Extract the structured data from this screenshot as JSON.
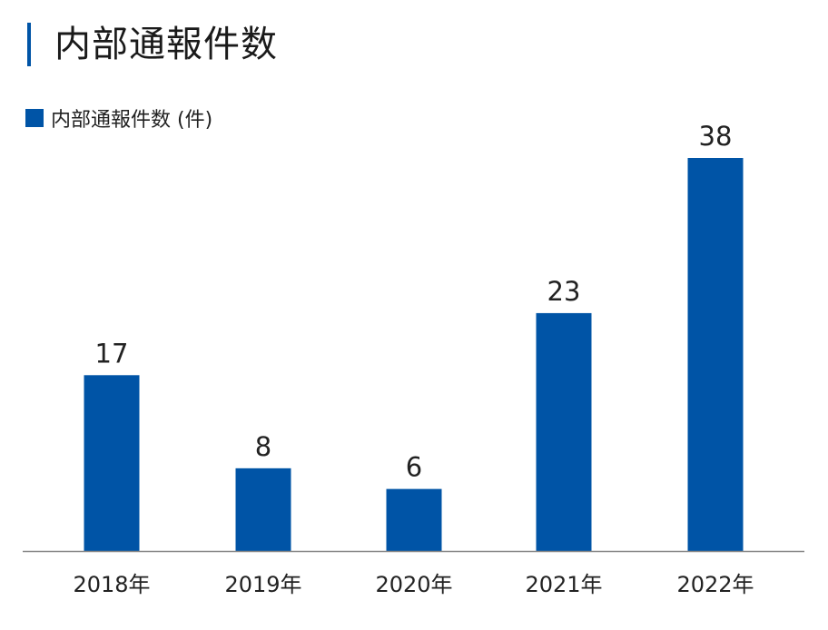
{
  "header": {
    "title": "内部通報件数"
  },
  "colors": {
    "accent": "#0054a6",
    "axis": "#888888"
  },
  "chart_data": {
    "type": "bar",
    "title": "内部通報件数",
    "categories": [
      "2018年",
      "2019年",
      "2020年",
      "2021年",
      "2022年"
    ],
    "series": [
      {
        "name": "内部通報件数 (件)",
        "values": [
          17,
          8,
          6,
          23,
          38
        ]
      }
    ],
    "ylim": [
      0,
      38
    ],
    "grid": false,
    "legend_position": "top-left",
    "data_labels": true
  }
}
